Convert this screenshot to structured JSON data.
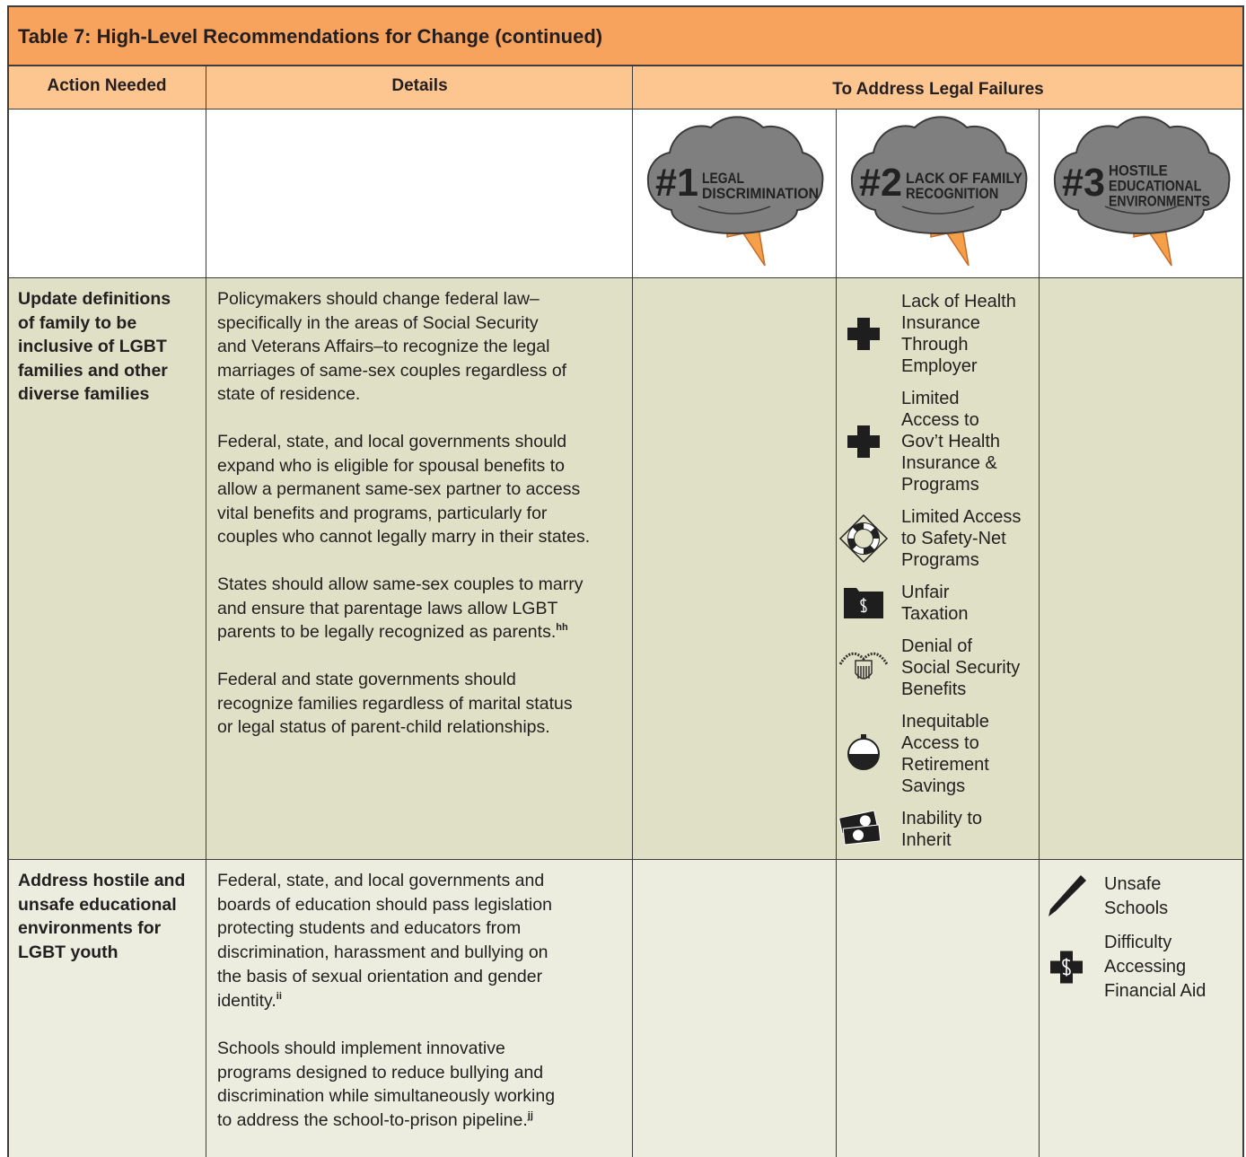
{
  "header": {
    "title": "Table 7: High-Level Recommendations for Change (continued)"
  },
  "table": {
    "columns": [
      "Action Needed",
      "Details",
      "To Address Legal Failures"
    ],
    "failures": [
      {
        "number": "#1",
        "label": [
          "LEGAL",
          "DISCRIMINATION"
        ]
      },
      {
        "number": "#2",
        "label": [
          "LACK OF FAMILY",
          "RECOGNITION"
        ]
      },
      {
        "number": "#3",
        "label": [
          "HOSTILE",
          "EDUCATIONAL",
          "ENVIRONMENTS"
        ]
      }
    ],
    "rows": [
      {
        "action": [
          "Update definitions",
          "of family to be",
          "inclusive of LGBT",
          "families and other",
          "diverse families"
        ],
        "details": [
          {
            "lines": [
              "Policymakers should change federal law–",
              "specifically in the areas of Social Security",
              "and Veterans Affairs–to recognize the legal",
              "marriages of same-sex couples regardless of",
              "state of residence."
            ]
          },
          {
            "lines": [
              "Federal, state, and local governments should",
              "expand who is eligible for spousal benefits to",
              "allow a permanent same-sex partner to access",
              "vital benefits and programs, particularly for",
              "couples who cannot legally marry in their states."
            ]
          },
          {
            "lines": [
              "States should allow same-sex couples to marry",
              "and ensure that parentage laws allow LGBT",
              "parents to be legally recognized as parents."
            ],
            "note": "hh"
          },
          {
            "lines": [
              "Federal and state governments should",
              "recognize families regardless of marital status",
              "or legal status of parent-child relationships."
            ]
          }
        ],
        "impacts": [
          [],
          [
            {
              "lines": [
                "Lack of Health",
                "Insurance",
                "Through",
                "Employer"
              ]
            },
            {
              "lines": [
                "Limited",
                "Access to",
                "Gov’t Health",
                "Insurance &",
                "Programs"
              ]
            },
            {
              "lines": [
                "Limited Access",
                "to Safety-Net",
                "Programs"
              ]
            },
            {
              "lines": [
                "Unfair",
                "Taxation"
              ]
            },
            {
              "lines": [
                "Denial of",
                "Social Security",
                "Benefits"
              ]
            },
            {
              "lines": [
                "Inequitable",
                "Access to",
                "Retirement",
                "Savings"
              ]
            },
            {
              "lines": [
                "Inability to",
                "Inherit"
              ]
            }
          ],
          []
        ]
      },
      {
        "action": [
          "Address hostile and",
          "unsafe educational",
          "environments for",
          "LGBT youth"
        ],
        "details": [
          {
            "lines": [
              "Federal, state, and local governments and",
              "boards of education should pass legislation",
              "protecting students and educators from",
              "discrimination, harassment and bullying on",
              "the basis of sexual orientation and gender",
              "identity."
            ],
            "note": "ii"
          },
          {
            "lines": [
              "Schools should implement innovative",
              "programs designed to reduce bullying and",
              "discrimination while simultaneously working",
              "to address the school-to-prison pipeline."
            ],
            "note": "jj"
          }
        ],
        "impacts": [
          [],
          [],
          [
            {
              "lines": [
                "Unsafe",
                "Schools"
              ]
            },
            {
              "lines": [
                "Difficulty",
                "Accessing",
                "Financial Aid"
              ]
            }
          ]
        ]
      }
    ]
  }
}
